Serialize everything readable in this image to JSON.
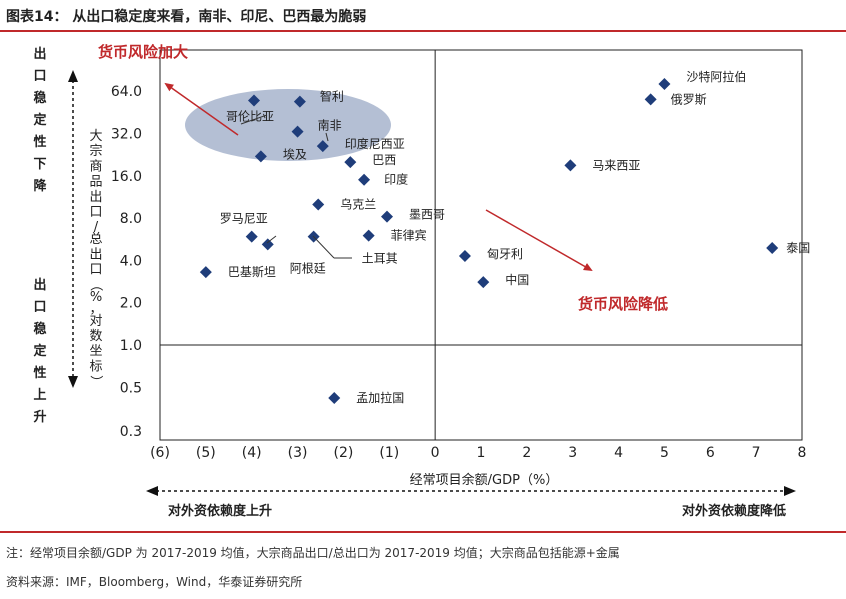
{
  "title": "图表14：  从出口稳定度来看，南非、印尼、巴西最为脆弱",
  "notes": {
    "note": "注：经常项目余额/GDP 为 2017-2019 均值，大宗商品出口/总出口为 2017-2019 均值；大宗商品包括能源+金属",
    "source": "资料来源：IMF，Bloomberg，Wind，华泰证券研究所"
  },
  "left_labels": {
    "top": "出口稳定性下降",
    "bottom": "出口稳定性上升"
  },
  "bottom_labels": {
    "left": "对外资依赖度上升",
    "right": "对外资依赖度降低"
  },
  "annotations": {
    "risk_up": "货币风险加大",
    "risk_down": "货币风险降低"
  },
  "colors": {
    "marker": "#1f3d7a",
    "accent": "#c0292b",
    "ellipse": "#8c9dbd"
  },
  "chart_data": {
    "type": "scatter",
    "xlabel": "经常项目余额/GDP（%）",
    "ylabel": "大宗商品出口/总出口（%，对数坐标）",
    "xlim": [
      -6,
      8
    ],
    "ylim": [
      0.3,
      90
    ],
    "y_scale": "log2",
    "x_ticks": [
      "(6)",
      "(5)",
      "(4)",
      "(3)",
      "(2)",
      "(1)",
      "0",
      "1",
      "2",
      "3",
      "4",
      "5",
      "6",
      "7",
      "8"
    ],
    "y_ticks": [
      "64.0",
      "32.0",
      "16.0",
      "8.0",
      "4.0",
      "2.0",
      "1.0",
      "0.5",
      "0.3"
    ],
    "points": [
      {
        "name": "沙特阿拉伯",
        "x": 5.0,
        "y": 72
      },
      {
        "name": "俄罗斯",
        "x": 4.7,
        "y": 56
      },
      {
        "name": "马来西亚",
        "x": 2.95,
        "y": 19
      },
      {
        "name": "泰国",
        "x": 7.35,
        "y": 4.9
      },
      {
        "name": "匈牙利",
        "x": 0.65,
        "y": 4.3
      },
      {
        "name": "中国",
        "x": 1.05,
        "y": 2.8
      },
      {
        "name": "哥伦比亚",
        "x": -3.95,
        "y": 55
      },
      {
        "name": "智利",
        "x": -2.95,
        "y": 54
      },
      {
        "name": "南非",
        "x": -3.0,
        "y": 33
      },
      {
        "name": "印度尼西亚",
        "x": -2.45,
        "y": 26
      },
      {
        "name": "埃及",
        "x": -3.8,
        "y": 22
      },
      {
        "name": "巴西",
        "x": -1.85,
        "y": 20
      },
      {
        "name": "印度",
        "x": -1.55,
        "y": 15
      },
      {
        "name": "乌克兰",
        "x": -2.55,
        "y": 10
      },
      {
        "name": "墨西哥",
        "x": -1.05,
        "y": 8.2
      },
      {
        "name": "罗马尼亚",
        "x": -4.0,
        "y": 5.9
      },
      {
        "name": "菲律宾",
        "x": -1.45,
        "y": 6.0
      },
      {
        "name": "阿根廷",
        "x": -3.65,
        "y": 5.2
      },
      {
        "name": "土耳其",
        "x": -2.65,
        "y": 5.9
      },
      {
        "name": "巴基斯坦",
        "x": -5.0,
        "y": 3.3
      },
      {
        "name": "孟加拉国",
        "x": -2.2,
        "y": 0.42
      }
    ]
  }
}
